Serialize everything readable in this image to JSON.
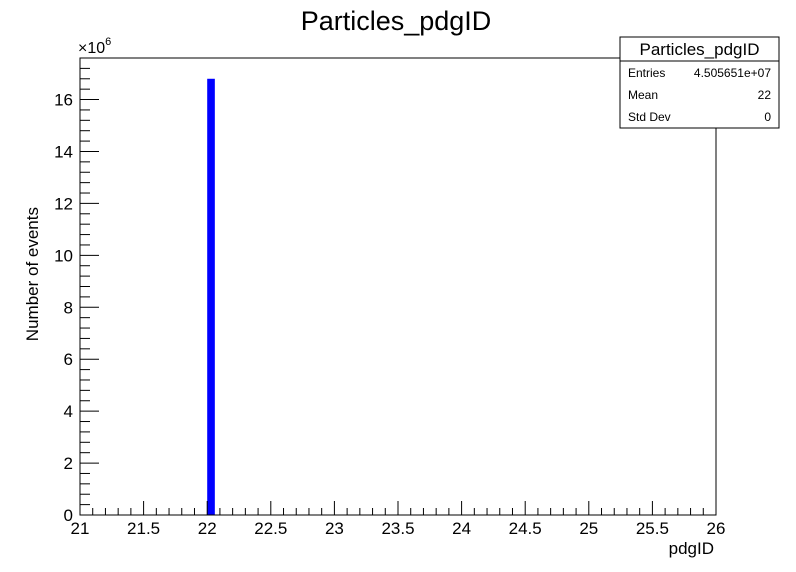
{
  "chart_data": {
    "type": "bar",
    "title": "Particles_pdgID",
    "xlabel": "pdgID",
    "ylabel": "Number of events",
    "xlim": [
      21,
      26
    ],
    "ylim": [
      0,
      17.6
    ],
    "y_multiplier": "×10",
    "y_multiplier_exponent": "6",
    "x_ticks": [
      "21",
      "21.5",
      "22",
      "22.5",
      "23",
      "23.5",
      "24",
      "24.5",
      "25",
      "25.5",
      "26"
    ],
    "y_ticks": [
      "0",
      "2",
      "4",
      "6",
      "8",
      "10",
      "12",
      "14",
      "16"
    ],
    "bars": [
      {
        "x_low": 22.0,
        "x_high": 22.06,
        "value": 16.8
      }
    ],
    "bar_color": "#0000ff",
    "stats_box": {
      "title": "Particles_pdgID",
      "rows": [
        {
          "label": "Entries",
          "value": "4.505651e+07"
        },
        {
          "label": "Mean",
          "value": "22"
        },
        {
          "label": "Std Dev",
          "value": "0"
        }
      ]
    }
  }
}
